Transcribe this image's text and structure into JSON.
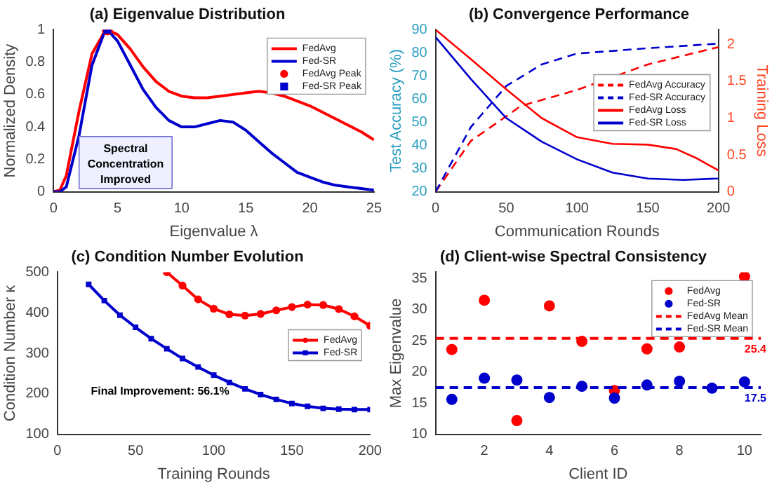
{
  "chart_data": [
    {
      "type": "line",
      "title": "(a) Eigenvalue Distribution",
      "xlabel": "Eigenvalue λ",
      "ylabel": "Normalized Density",
      "xlim": [
        0,
        25
      ],
      "xticks": [
        0,
        5,
        10,
        15,
        20,
        25
      ],
      "ylim": [
        0,
        1
      ],
      "yticks": [
        0,
        0.2,
        0.4,
        0.6,
        0.8,
        1
      ],
      "legend": "top right",
      "annotations": [
        "Spectral Concentration Improved"
      ],
      "series": [
        {
          "name": "FedAvg",
          "color": "#ff0000",
          "marker": "none",
          "line_style": "solid",
          "x": [
            0,
            0.5,
            1,
            2,
            3,
            4,
            4.2,
            5,
            6,
            7,
            8,
            9,
            10,
            11,
            12,
            13,
            14,
            15,
            16,
            17,
            18,
            19,
            20,
            21,
            22,
            23,
            24,
            25
          ],
          "values": [
            0,
            0.01,
            0.1,
            0.5,
            0.85,
            0.99,
            1,
            0.97,
            0.88,
            0.77,
            0.68,
            0.62,
            0.59,
            0.58,
            0.58,
            0.59,
            0.6,
            0.61,
            0.62,
            0.61,
            0.59,
            0.56,
            0.53,
            0.49,
            0.45,
            0.41,
            0.37,
            0.32
          ]
        },
        {
          "name": "Fed-SR",
          "color": "#0000cc",
          "marker": "none",
          "line_style": "solid",
          "x": [
            0,
            0.5,
            1,
            2,
            3,
            4,
            4.2,
            5,
            6,
            7,
            8,
            9,
            10,
            11,
            12,
            13,
            14,
            15,
            16,
            17,
            18,
            19,
            20,
            21,
            22,
            23,
            24,
            25
          ],
          "values": [
            0,
            0,
            0.03,
            0.35,
            0.78,
            0.99,
            1,
            0.93,
            0.78,
            0.63,
            0.52,
            0.44,
            0.4,
            0.4,
            0.42,
            0.44,
            0.43,
            0.38,
            0.31,
            0.24,
            0.18,
            0.12,
            0.09,
            0.06,
            0.04,
            0.03,
            0.02,
            0.01
          ]
        },
        {
          "name": "FedAvg Peak",
          "type": "scatter",
          "color": "#ff0000",
          "marker": "circle",
          "x": [
            4.2
          ],
          "values": [
            1
          ]
        },
        {
          "name": "Fed-SR Peak",
          "type": "scatter",
          "color": "#0000cc",
          "marker": "square",
          "x": [
            4.2
          ],
          "values": [
            1
          ]
        }
      ]
    },
    {
      "type": "line",
      "title": "(b) Convergence Performance",
      "xlabel": "Communication Rounds",
      "ylabel": "Test Accuracy (%)",
      "y2label": "Training Loss",
      "xlim": [
        0,
        200
      ],
      "xticks": [
        0,
        50,
        100,
        150,
        200
      ],
      "ylim": [
        20,
        90
      ],
      "yticks": [
        20,
        30,
        40,
        50,
        60,
        70,
        80,
        90
      ],
      "y2lim": [
        0,
        2.2
      ],
      "y2ticks": [
        0,
        0.5,
        1,
        1.5,
        2
      ],
      "legend": "right",
      "series": [
        {
          "name": "FedAvg Accuracy",
          "color": "#ff0000",
          "line_style": "dashed",
          "marker": "none",
          "x": [
            0,
            25,
            50,
            60,
            100,
            150,
            200
          ],
          "values": [
            20,
            42,
            52.6,
            57,
            64,
            75,
            82.5
          ]
        },
        {
          "name": "Fed-SR Accuracy",
          "color": "#0000cc",
          "line_style": "dashed",
          "marker": "none",
          "x": [
            0,
            25,
            50,
            75,
            100,
            150,
            200
          ],
          "values": [
            20,
            48,
            65.7,
            75,
            79.7,
            82,
            84
          ]
        },
        {
          "name": "FedAvg Loss",
          "color": "#ff0000",
          "line_style": "solid",
          "marker": "none",
          "axis": "y2",
          "x": [
            0,
            25,
            50,
            75,
            100,
            125,
            150,
            170,
            185,
            200
          ],
          "values": [
            2.2,
            1.8,
            1.39,
            1.0,
            0.74,
            0.65,
            0.64,
            0.58,
            0.45,
            0.29
          ]
        },
        {
          "name": "Fed-SR Loss",
          "color": "#0000cc",
          "line_style": "solid",
          "marker": "none",
          "axis": "y2",
          "x": [
            0,
            25,
            50,
            75,
            100,
            125,
            150,
            175,
            200
          ],
          "values": [
            2.1,
            1.53,
            1.0,
            0.68,
            0.44,
            0.26,
            0.18,
            0.16,
            0.18
          ]
        }
      ]
    },
    {
      "type": "line",
      "title": "(c) Condition Number Evolution",
      "xlabel": "Training Rounds",
      "ylabel": "Condition Number κ",
      "xlim": [
        0,
        200
      ],
      "xticks": [
        0,
        50,
        100,
        150,
        200
      ],
      "ylim": [
        100,
        500
      ],
      "yticks": [
        100,
        200,
        300,
        400,
        500
      ],
      "legend": "right",
      "annotations": [
        "Final Improvement: 56.1%"
      ],
      "series": [
        {
          "name": "FedAvg",
          "color": "#ff0000",
          "marker": "circle",
          "line_style": "solid",
          "x": [
            70,
            80,
            90,
            100,
            110,
            120,
            130,
            140,
            150,
            160,
            170,
            180,
            190,
            200
          ],
          "values": [
            500,
            467,
            433,
            410,
            396,
            393,
            397,
            406,
            414,
            420,
            419,
            409,
            391,
            368
          ]
        },
        {
          "name": "Fed-SR",
          "color": "#0000cc",
          "marker": "square",
          "line_style": "solid",
          "x": [
            20,
            30,
            40,
            50,
            60,
            70,
            80,
            90,
            100,
            110,
            120,
            130,
            140,
            150,
            160,
            170,
            180,
            190,
            200
          ],
          "values": [
            470,
            430,
            394,
            364,
            336,
            311,
            287,
            266,
            246,
            228,
            212,
            198,
            186,
            176,
            169,
            164,
            162,
            161,
            161
          ]
        }
      ]
    },
    {
      "type": "scatter",
      "title": "(d) Client-wise Spectral Consistency",
      "xlabel": "Client ID",
      "ylabel": "Max Eigenvalue",
      "xlim": [
        0.5,
        10.5
      ],
      "xticks": [
        2,
        4,
        6,
        8,
        10
      ],
      "ylim": [
        10,
        36
      ],
      "yticks": [
        10,
        15,
        20,
        25,
        30,
        35
      ],
      "legend": "top right",
      "annotations": [
        {
          "text": "25.4",
          "x": 10,
          "y": 25.4
        },
        {
          "text": "17.5",
          "x": 10,
          "y": 17.5
        }
      ],
      "series": [
        {
          "name": "FedAvg",
          "color": "#ff0000",
          "marker": "circle",
          "x": [
            1,
            2,
            3,
            4,
            5,
            6,
            7,
            8,
            9,
            10
          ],
          "values": [
            23.6,
            31.5,
            12.2,
            30.6,
            24.9,
            17.0,
            23.7,
            24.0,
            null,
            35.3
          ]
        },
        {
          "name": "Fed-SR",
          "color": "#0000cc",
          "marker": "circle",
          "x": [
            1,
            2,
            3,
            4,
            5,
            6,
            7,
            8,
            9,
            10
          ],
          "values": [
            15.6,
            19.0,
            18.7,
            15.9,
            17.7,
            15.8,
            17.9,
            18.5,
            17.4,
            18.4
          ]
        },
        {
          "name": "FedAvg Mean",
          "type": "line",
          "color": "#ff0000",
          "marker": "none",
          "line_style": "dashed",
          "x": [
            0.5,
            10.5
          ],
          "values": [
            25.4,
            25.4
          ]
        },
        {
          "name": "Fed-SR Mean",
          "type": "line",
          "color": "#0000cc",
          "marker": "none",
          "line_style": "dashed",
          "x": [
            0.5,
            10.5
          ],
          "values": [
            17.5,
            17.5
          ]
        }
      ]
    }
  ]
}
